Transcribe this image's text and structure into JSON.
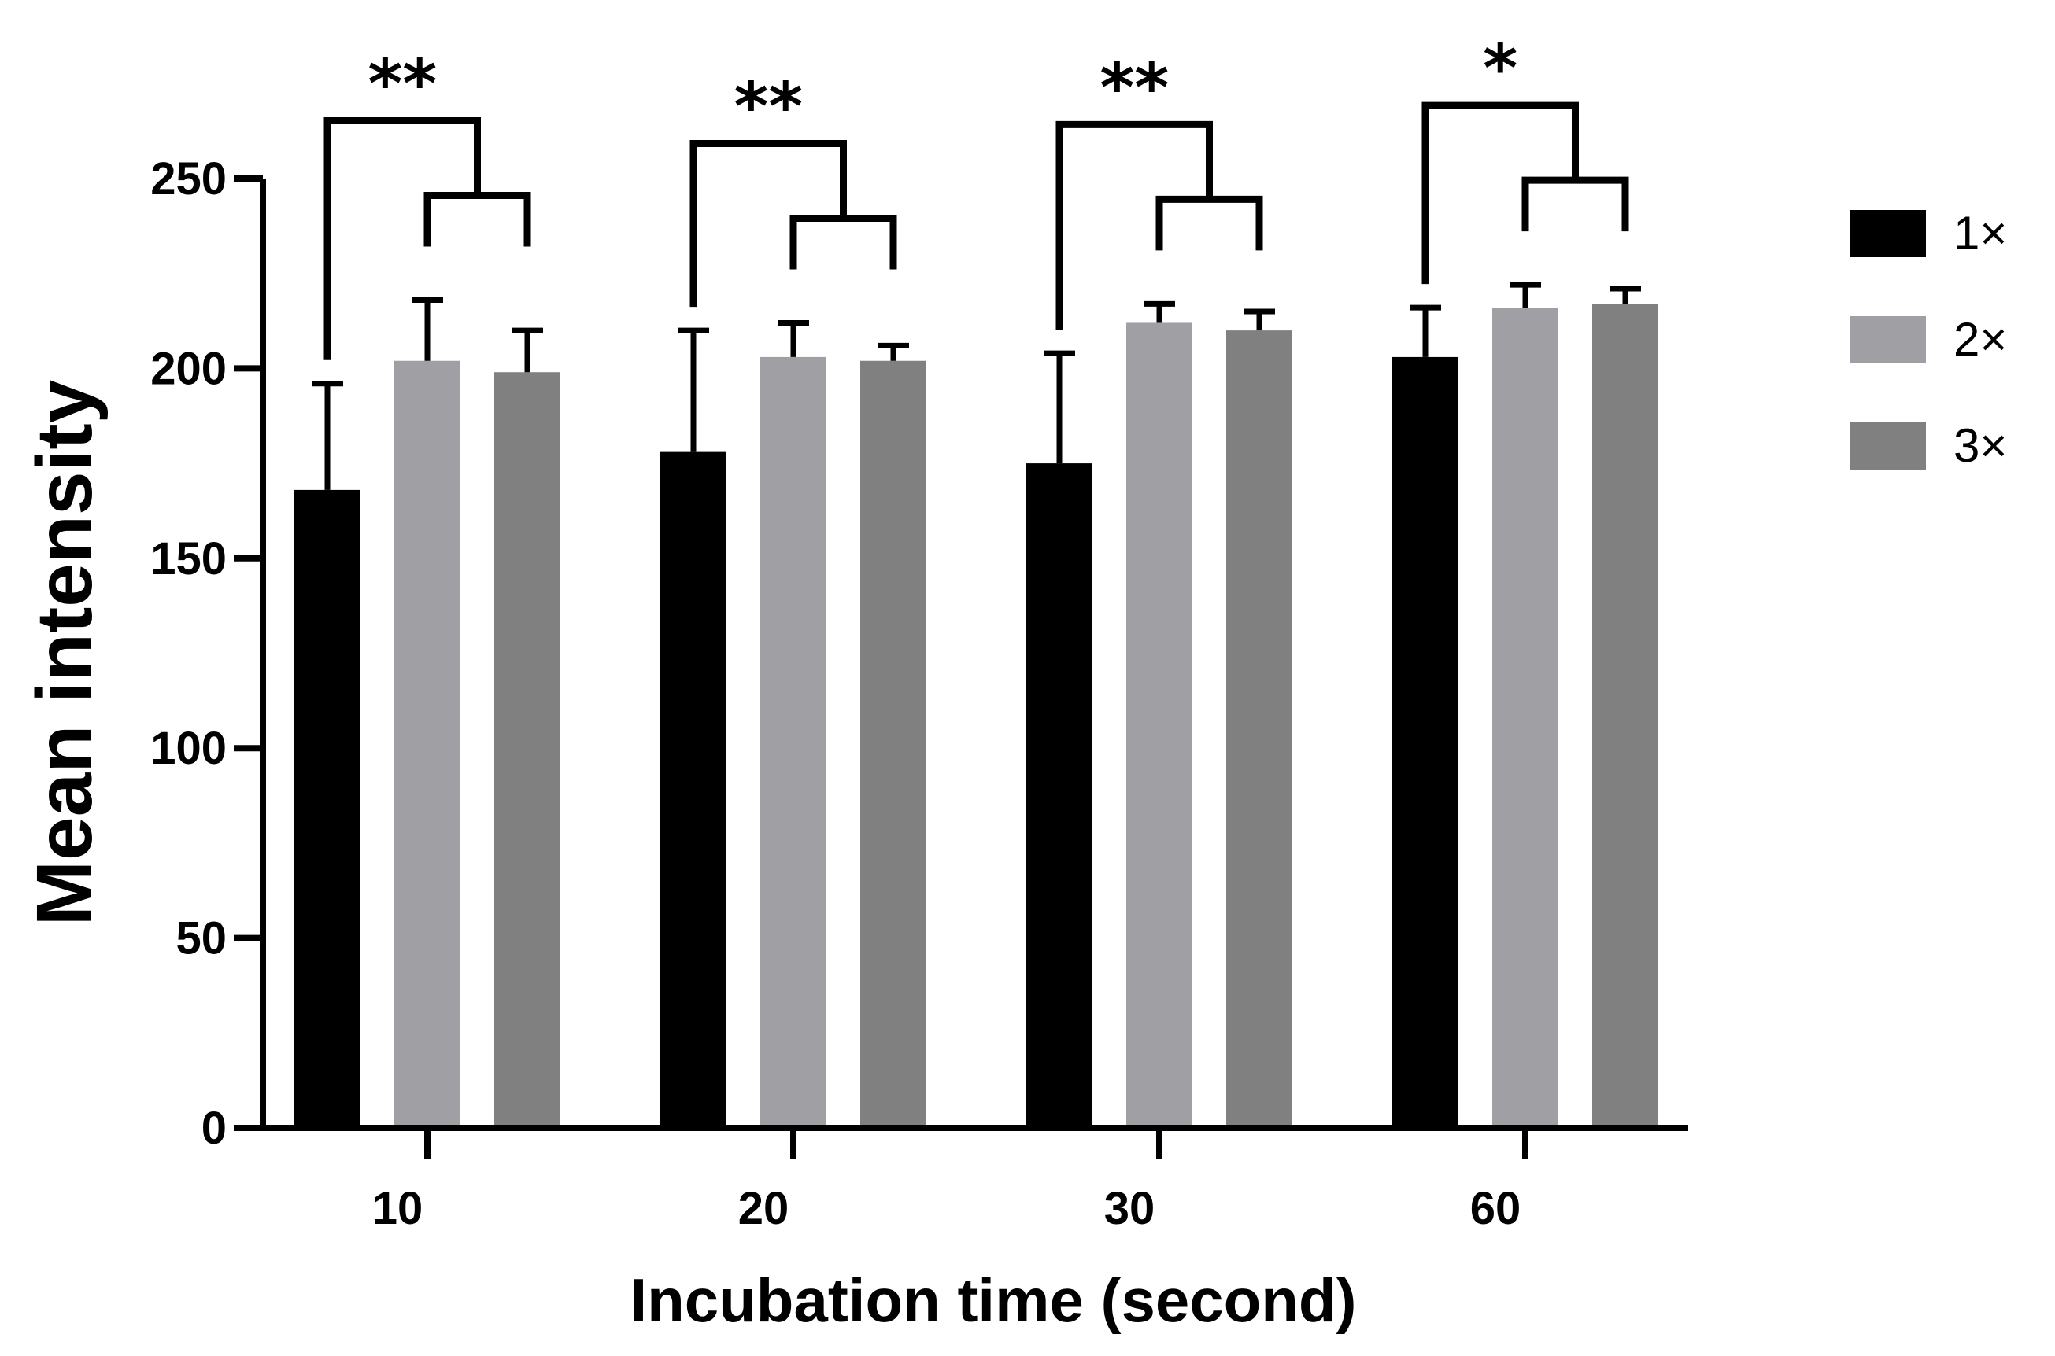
{
  "chart_data": {
    "type": "bar",
    "title": "",
    "xlabel": "Incubation time (second)",
    "ylabel": "Mean intensity",
    "ylim": [
      0,
      250
    ],
    "yticks": [
      0,
      50,
      100,
      150,
      200,
      250
    ],
    "categories": [
      "10",
      "20",
      "30",
      "60"
    ],
    "series": [
      {
        "name": "1×",
        "color": "#000000",
        "values": [
          168,
          178,
          175,
          203
        ],
        "errors": [
          28,
          32,
          29,
          13
        ]
      },
      {
        "name": "2×",
        "color": "#a0a0a4",
        "values": [
          202,
          203,
          212,
          216
        ],
        "errors": [
          16,
          9,
          5,
          6
        ]
      },
      {
        "name": "3×",
        "color": "#808080",
        "values": [
          199,
          202,
          210,
          217
        ],
        "errors": [
          11,
          4,
          5,
          4
        ]
      }
    ],
    "significance": [
      "**",
      "**",
      "**",
      "*"
    ],
    "legend_position": "right"
  }
}
